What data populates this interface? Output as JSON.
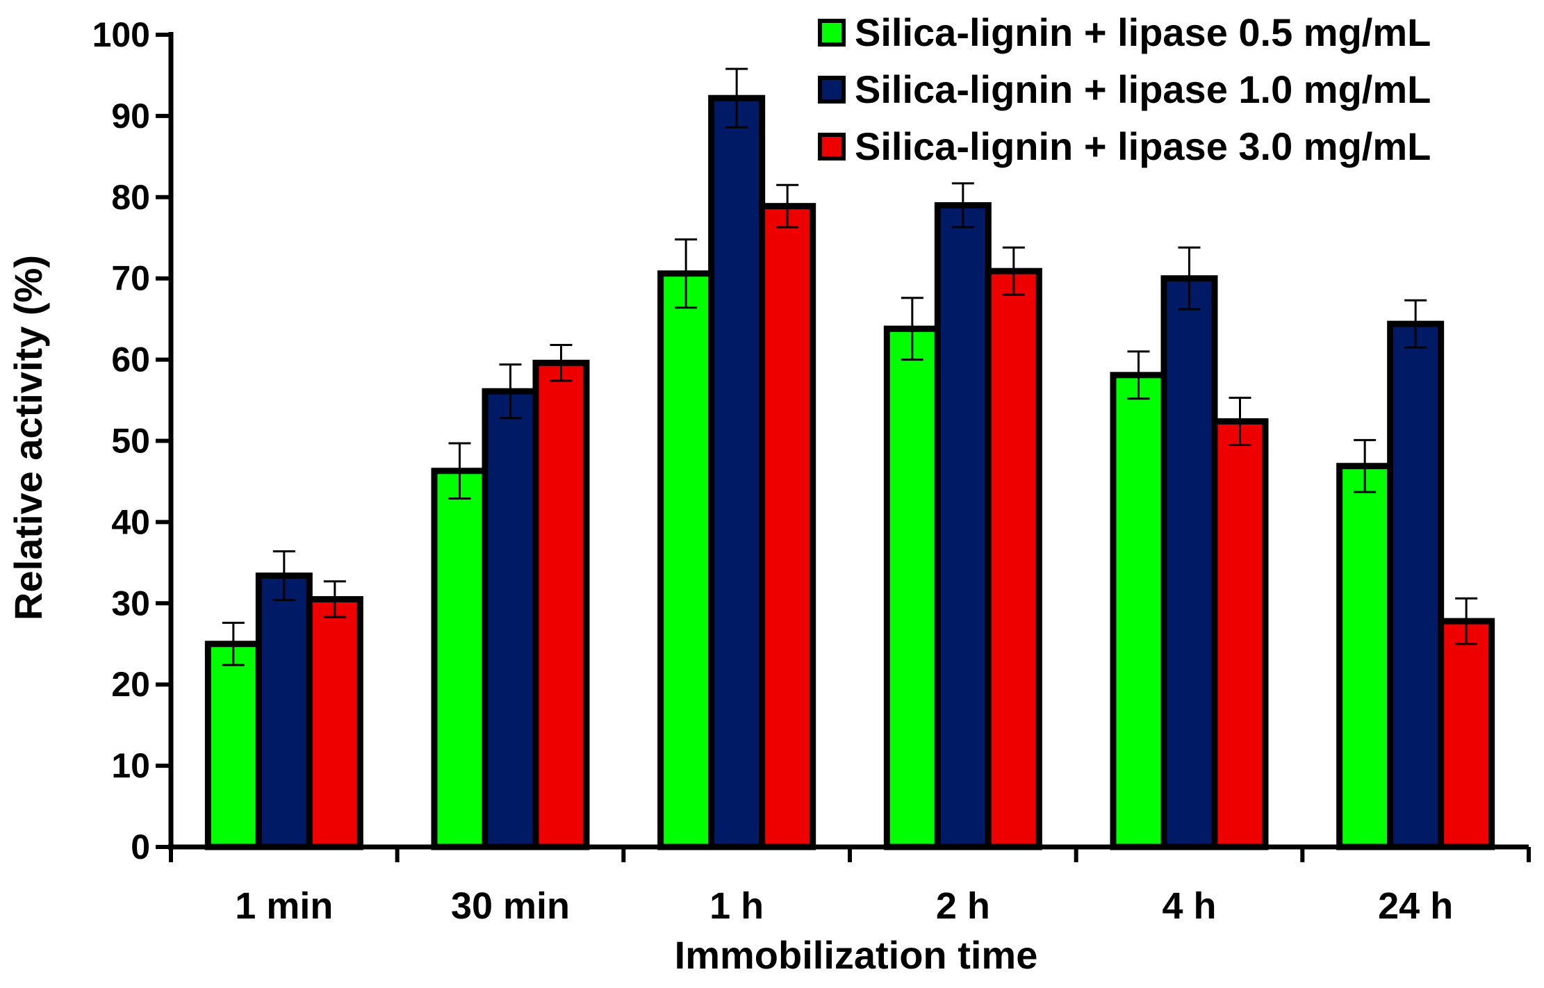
{
  "chart_data": {
    "type": "bar",
    "title": "",
    "xlabel": "Immobilization time",
    "ylabel": "Relative activity (%)",
    "ylim": [
      0,
      100
    ],
    "yticks": [
      "0",
      "10",
      "20",
      "30",
      "40",
      "50",
      "60",
      "70",
      "80",
      "90",
      "100"
    ],
    "categories": [
      "1 min",
      "30 min",
      "1 h",
      "2 h",
      "4 h",
      "24 h"
    ],
    "legend_position": "top-right",
    "grid": false,
    "error_bars": true,
    "series": [
      {
        "name": "Silica-lignin + lipase 0.5 mg/mL",
        "color": "#00ff00",
        "values": [
          25,
          46.3,
          70.6,
          63.8,
          58.1,
          46.9
        ],
        "errors": [
          2.6,
          3.4,
          4.2,
          3.8,
          2.9,
          3.2
        ]
      },
      {
        "name": "Silica-lignin + lipase 1.0 mg/mL",
        "color": "#001a66",
        "values": [
          33.4,
          56.1,
          92.2,
          79,
          70,
          64.4
        ],
        "errors": [
          3,
          3.3,
          3.6,
          2.7,
          3.8,
          2.9
        ]
      },
      {
        "name": "Silica-lignin + lipase 3.0 mg/mL",
        "color": "#ee0000",
        "values": [
          30.5,
          59.6,
          78.9,
          70.9,
          52.4,
          27.8
        ],
        "errors": [
          2.2,
          2.2,
          2.6,
          2.9,
          2.9,
          2.8
        ]
      }
    ]
  }
}
